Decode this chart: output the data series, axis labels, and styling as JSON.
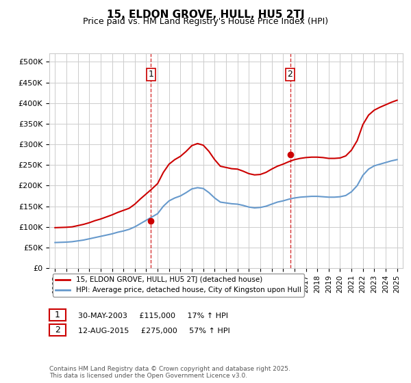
{
  "title": "15, ELDON GROVE, HULL, HU5 2TJ",
  "subtitle": "Price paid vs. HM Land Registry's House Price Index (HPI)",
  "ylabel_ticks": [
    "£0",
    "£50K",
    "£100K",
    "£150K",
    "£200K",
    "£250K",
    "£300K",
    "£350K",
    "£400K",
    "£450K",
    "£500K"
  ],
  "ytick_vals": [
    0,
    50000,
    100000,
    150000,
    200000,
    250000,
    300000,
    350000,
    400000,
    450000,
    500000
  ],
  "ylim": [
    0,
    520000
  ],
  "xlim_start": 1995.0,
  "xlim_end": 2025.5,
  "sale1_date": 2003.41,
  "sale1_price": 115000,
  "sale2_date": 2015.62,
  "sale2_price": 275000,
  "legend_line1": "15, ELDON GROVE, HULL, HU5 2TJ (detached house)",
  "legend_line2": "HPI: Average price, detached house, City of Kingston upon Hull",
  "annotation1_label": "1",
  "annotation1_text": "30-MAY-2003     £115,000     17% ↑ HPI",
  "annotation2_label": "2",
  "annotation2_text": "12-AUG-2015     £275,000     57% ↑ HPI",
  "footer": "Contains HM Land Registry data © Crown copyright and database right 2025.\nThis data is licensed under the Open Government Licence v3.0.",
  "red_color": "#cc0000",
  "blue_color": "#6699cc",
  "grid_color": "#cccccc",
  "background_color": "#ffffff",
  "hpi_years": [
    1995,
    1995.5,
    1996,
    1996.5,
    1997,
    1997.5,
    1998,
    1998.5,
    1999,
    1999.5,
    2000,
    2000.5,
    2001,
    2001.5,
    2002,
    2002.5,
    2003,
    2003.5,
    2004,
    2004.5,
    2005,
    2005.5,
    2006,
    2006.5,
    2007,
    2007.5,
    2008,
    2008.5,
    2009,
    2009.5,
    2010,
    2010.5,
    2011,
    2011.5,
    2012,
    2012.5,
    2013,
    2013.5,
    2014,
    2014.5,
    2015,
    2015.5,
    2016,
    2016.5,
    2017,
    2017.5,
    2018,
    2018.5,
    2019,
    2019.5,
    2020,
    2020.5,
    2021,
    2021.5,
    2022,
    2022.5,
    2023,
    2023.5,
    2024,
    2024.5,
    2025
  ],
  "hpi_values": [
    62000,
    62500,
    63000,
    64000,
    66000,
    68000,
    71000,
    74000,
    77000,
    80000,
    83000,
    87000,
    90000,
    94000,
    100000,
    108000,
    116000,
    124000,
    132000,
    150000,
    163000,
    170000,
    175000,
    183000,
    192000,
    195000,
    193000,
    183000,
    170000,
    160000,
    158000,
    156000,
    155000,
    152000,
    148000,
    146000,
    147000,
    150000,
    155000,
    160000,
    163000,
    167000,
    170000,
    172000,
    173000,
    174000,
    174000,
    173000,
    172000,
    172000,
    173000,
    176000,
    185000,
    200000,
    225000,
    240000,
    248000,
    252000,
    256000,
    260000,
    263000
  ],
  "hpi_indexed_years": [
    1995,
    1995.5,
    1996,
    1996.5,
    1997,
    1997.5,
    1998,
    1998.5,
    1999,
    1999.5,
    2000,
    2000.5,
    2001,
    2001.5,
    2002,
    2002.5,
    2003,
    2003.5,
    2004,
    2004.5,
    2005,
    2005.5,
    2006,
    2006.5,
    2007,
    2007.5,
    2008,
    2008.5,
    2009,
    2009.5,
    2010,
    2010.5,
    2011,
    2011.5,
    2012,
    2012.5,
    2013,
    2013.5,
    2014,
    2014.5,
    2015,
    2015.5,
    2016,
    2016.5,
    2017,
    2017.5,
    2018,
    2018.5,
    2019,
    2019.5,
    2020,
    2020.5,
    2021,
    2021.5,
    2022,
    2022.5,
    2023,
    2023.5,
    2024,
    2024.5,
    2025
  ],
  "hpi_indexed_values": [
    98000,
    98500,
    99000,
    100000,
    103000,
    106000,
    110000,
    115000,
    119000,
    124000,
    129000,
    135000,
    140000,
    145000,
    155000,
    168000,
    180000,
    192000,
    205000,
    232000,
    252000,
    263000,
    271000,
    283000,
    297000,
    302000,
    298000,
    283000,
    263000,
    247000,
    244000,
    241000,
    240000,
    235000,
    229000,
    226000,
    227000,
    232000,
    240000,
    247000,
    252000,
    258000,
    263000,
    266000,
    268000,
    269000,
    269000,
    268000,
    266000,
    266000,
    267000,
    272000,
    286000,
    309000,
    348000,
    371000,
    383000,
    390000,
    396000,
    402000,
    407000
  ],
  "xtick_years": [
    1995,
    1996,
    1997,
    1998,
    1999,
    2000,
    2001,
    2002,
    2003,
    2004,
    2005,
    2006,
    2007,
    2008,
    2009,
    2010,
    2011,
    2012,
    2013,
    2014,
    2015,
    2016,
    2017,
    2018,
    2019,
    2020,
    2021,
    2022,
    2023,
    2024,
    2025
  ]
}
